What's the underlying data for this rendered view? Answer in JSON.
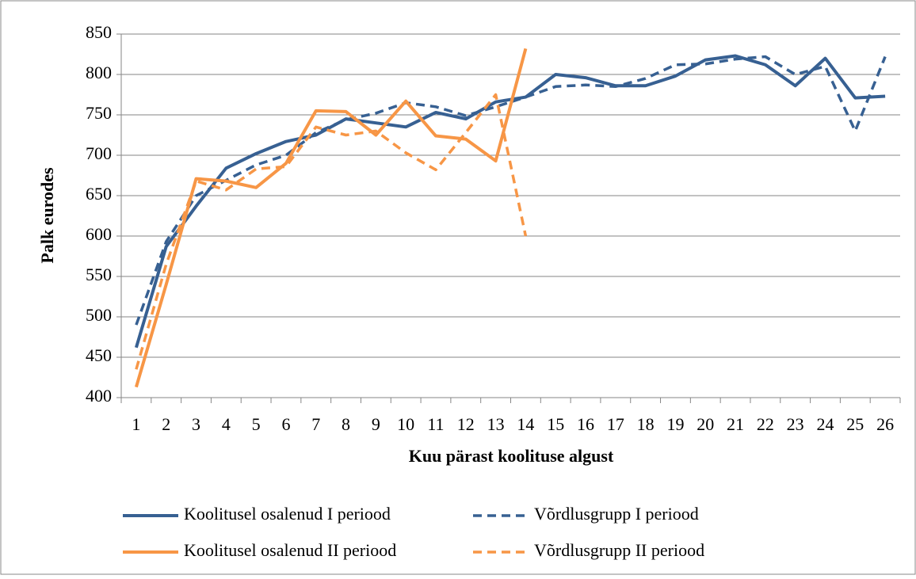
{
  "chart_data": {
    "type": "line",
    "x_label": "Kuu pärast koolituse algust",
    "y_label": "Palk eurodes",
    "categories": [
      "1",
      "2",
      "3",
      "4",
      "5",
      "6",
      "7",
      "8",
      "9",
      "10",
      "11",
      "12",
      "13",
      "14",
      "15",
      "16",
      "17",
      "18",
      "19",
      "20",
      "21",
      "22",
      "23",
      "24",
      "25",
      "26"
    ],
    "series": [
      {
        "name": "Koolitusel osalenud I periood",
        "color": "#376092",
        "dashed": false,
        "values": [
          462,
          587,
          637,
          684,
          702,
          717,
          725,
          745,
          740,
          735,
          753,
          745,
          766,
          772,
          800,
          796,
          786,
          786,
          798,
          818,
          823,
          812,
          786,
          820,
          771,
          773
        ]
      },
      {
        "name": "Võrdlusgrupp I periood",
        "color": "#376092",
        "dashed": true,
        "values": [
          490,
          593,
          650,
          669,
          688,
          700,
          728,
          744,
          752,
          765,
          760,
          749,
          760,
          772,
          785,
          787,
          785,
          795,
          812,
          813,
          819,
          822,
          800,
          810,
          730,
          822
        ]
      },
      {
        "name": "Koolitusel osalenud II periood",
        "color": "#f79646",
        "dashed": false,
        "values": [
          413,
          540,
          671,
          668,
          660,
          690,
          755,
          754,
          725,
          767,
          724,
          720,
          693,
          832,
          null,
          null,
          null,
          null,
          null,
          null,
          null,
          null,
          null,
          null,
          null,
          null
        ]
      },
      {
        "name": "Võrdlusgrupp II periood",
        "color": "#f79646",
        "dashed": true,
        "values": [
          435,
          565,
          668,
          657,
          683,
          686,
          735,
          725,
          730,
          703,
          682,
          728,
          775,
          600,
          null,
          null,
          null,
          null,
          null,
          null,
          null,
          null,
          null,
          null,
          null,
          null
        ]
      }
    ],
    "ylim": [
      400,
      850
    ],
    "yticks": [
      400,
      450,
      500,
      550,
      600,
      650,
      700,
      750,
      800,
      850
    ],
    "grid": true
  }
}
